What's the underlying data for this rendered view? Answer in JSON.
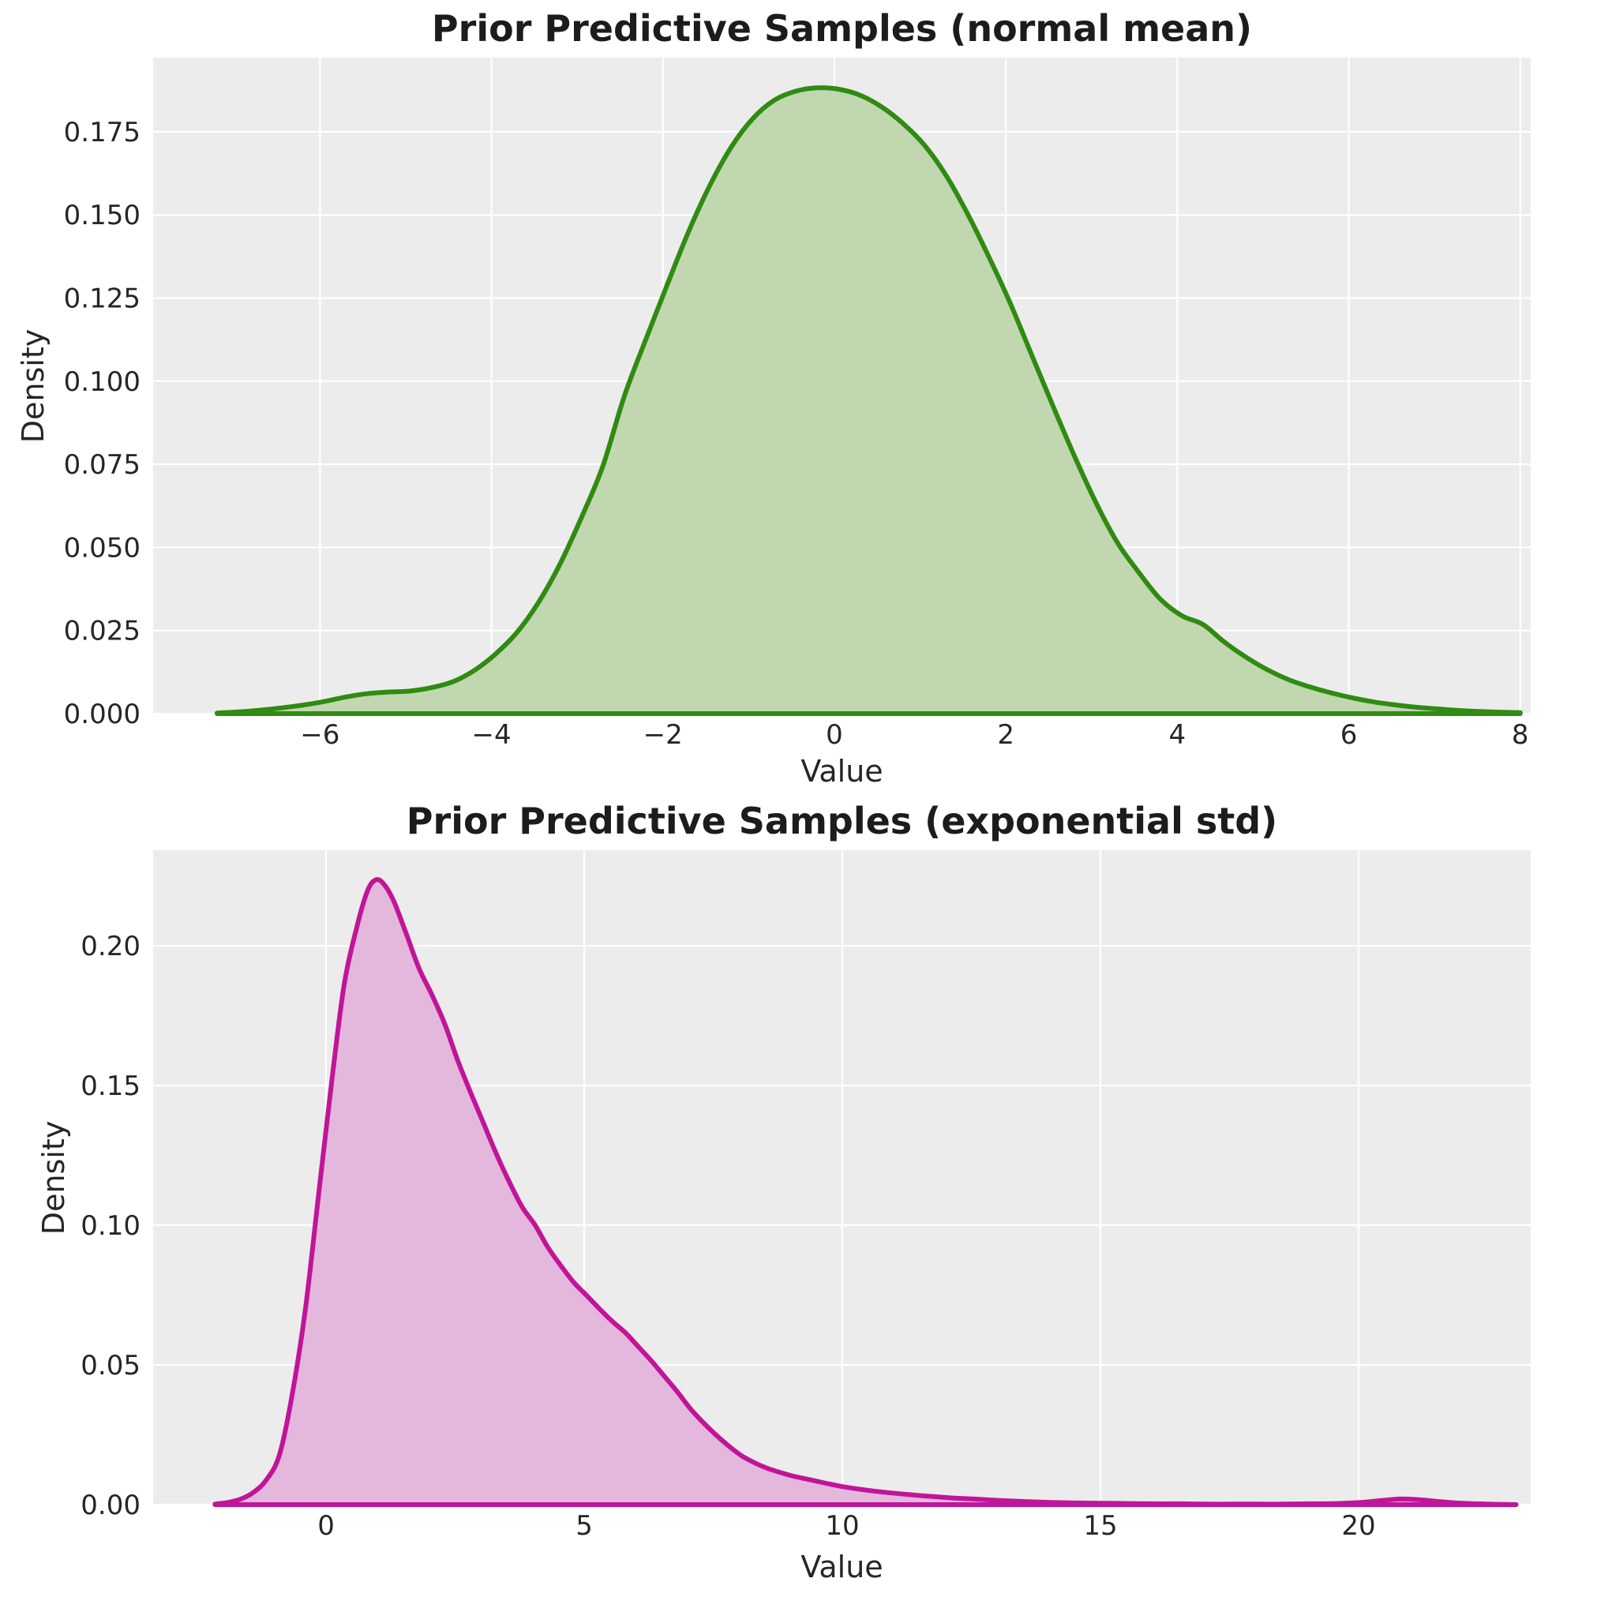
{
  "figure": {
    "background": "#ffffff",
    "plot_background": "#ececec",
    "grid_color": "#ffffff",
    "text_color": "#262626",
    "title_color": "#1c1c1c"
  },
  "chart_data": [
    {
      "type": "area",
      "kind": "kde-density",
      "title": "Prior Predictive Samples (normal mean)",
      "xlabel": "Value",
      "ylabel": "Density",
      "line_color": "#2f8b11",
      "fill_color": "#c1d7b0",
      "xlim": [
        -7.946,
        8.122
      ],
      "ylim": [
        0,
        0.1973
      ],
      "grid": true,
      "legend": "none",
      "xticks": [
        -6,
        -4,
        -2,
        0,
        2,
        4,
        6,
        8
      ],
      "xtick_labels": [
        "−6",
        "−4",
        "−2",
        "0",
        "2",
        "4",
        "6",
        "8"
      ],
      "yticks": [
        0,
        0.025,
        0.05,
        0.075,
        0.1,
        0.125,
        0.15,
        0.175
      ],
      "ytick_labels": [
        "0.000",
        "0.025",
        "0.050",
        "0.075",
        "0.100",
        "0.125",
        "0.150",
        "0.175"
      ],
      "points": [
        [
          -7.2,
          0.0002
        ],
        [
          -6.9,
          0.0006
        ],
        [
          -6.6,
          0.0013
        ],
        [
          -6.3,
          0.0022
        ],
        [
          -6.0,
          0.0034
        ],
        [
          -5.7,
          0.005
        ],
        [
          -5.45,
          0.006
        ],
        [
          -5.2,
          0.0065
        ],
        [
          -4.95,
          0.0068
        ],
        [
          -4.7,
          0.0078
        ],
        [
          -4.45,
          0.0096
        ],
        [
          -4.2,
          0.013
        ],
        [
          -3.95,
          0.018
        ],
        [
          -3.7,
          0.0245
        ],
        [
          -3.45,
          0.0335
        ],
        [
          -3.2,
          0.045
        ],
        [
          -2.95,
          0.059
        ],
        [
          -2.7,
          0.0745
        ],
        [
          -2.45,
          0.0955
        ],
        [
          -2.2,
          0.1125
        ],
        [
          -1.95,
          0.129
        ],
        [
          -1.7,
          0.145
        ],
        [
          -1.45,
          0.159
        ],
        [
          -1.2,
          0.1705
        ],
        [
          -0.95,
          0.179
        ],
        [
          -0.7,
          0.1845
        ],
        [
          -0.45,
          0.1872
        ],
        [
          -0.2,
          0.1882
        ],
        [
          0.05,
          0.1878
        ],
        [
          0.3,
          0.186
        ],
        [
          0.55,
          0.1825
        ],
        [
          0.8,
          0.1775
        ],
        [
          1.05,
          0.171
        ],
        [
          1.3,
          0.162
        ],
        [
          1.55,
          0.1505
        ],
        [
          1.8,
          0.1375
        ],
        [
          2.05,
          0.1235
        ],
        [
          2.3,
          0.108
        ],
        [
          2.55,
          0.0925
        ],
        [
          2.8,
          0.0775
        ],
        [
          3.05,
          0.0635
        ],
        [
          3.3,
          0.0515
        ],
        [
          3.55,
          0.0425
        ],
        [
          3.8,
          0.0345
        ],
        [
          4.05,
          0.0295
        ],
        [
          4.3,
          0.0268
        ],
        [
          4.55,
          0.0215
        ],
        [
          4.8,
          0.017
        ],
        [
          5.05,
          0.0132
        ],
        [
          5.3,
          0.0102
        ],
        [
          5.55,
          0.008
        ],
        [
          5.8,
          0.0062
        ],
        [
          6.05,
          0.0047
        ],
        [
          6.3,
          0.0035
        ],
        [
          6.55,
          0.0026
        ],
        [
          6.8,
          0.0019
        ],
        [
          7.1,
          0.0013
        ],
        [
          7.4,
          0.0008
        ],
        [
          7.7,
          0.0005
        ],
        [
          8.0,
          0.0003
        ]
      ]
    },
    {
      "type": "area",
      "kind": "kde-density",
      "title": "Prior Predictive Samples (exponential std)",
      "xlabel": "Value",
      "ylabel": "Density",
      "line_color": "#c01598",
      "fill_color": "#e4b7dc",
      "xlim": [
        -3.349,
        23.333
      ],
      "ylim": [
        0,
        0.2342
      ],
      "grid": true,
      "legend": "none",
      "xticks": [
        0,
        5,
        10,
        15,
        20
      ],
      "xtick_labels": [
        "0",
        "5",
        "10",
        "15",
        "20"
      ],
      "yticks": [
        0,
        0.05,
        0.1,
        0.15,
        0.2
      ],
      "ytick_labels": [
        "0.00",
        "0.05",
        "0.10",
        "0.15",
        "0.20"
      ],
      "points": [
        [
          -2.15,
          0.0002
        ],
        [
          -1.9,
          0.0008
        ],
        [
          -1.65,
          0.002
        ],
        [
          -1.4,
          0.0045
        ],
        [
          -1.15,
          0.009
        ],
        [
          -0.9,
          0.018
        ],
        [
          -0.65,
          0.04
        ],
        [
          -0.4,
          0.07
        ],
        [
          -0.15,
          0.11
        ],
        [
          0.1,
          0.15
        ],
        [
          0.35,
          0.186
        ],
        [
          0.6,
          0.207
        ],
        [
          0.8,
          0.2195
        ],
        [
          0.95,
          0.2235
        ],
        [
          1.1,
          0.2225
        ],
        [
          1.3,
          0.2165
        ],
        [
          1.55,
          0.2045
        ],
        [
          1.8,
          0.192
        ],
        [
          2.05,
          0.1825
        ],
        [
          2.3,
          0.172
        ],
        [
          2.55,
          0.159
        ],
        [
          2.8,
          0.1475
        ],
        [
          3.05,
          0.1365
        ],
        [
          3.3,
          0.1255
        ],
        [
          3.55,
          0.1155
        ],
        [
          3.8,
          0.1065
        ],
        [
          4.05,
          0.1
        ],
        [
          4.3,
          0.092
        ],
        [
          4.55,
          0.0855
        ],
        [
          4.8,
          0.0795
        ],
        [
          5.05,
          0.0748
        ],
        [
          5.3,
          0.07
        ],
        [
          5.55,
          0.0655
        ],
        [
          5.8,
          0.0615
        ],
        [
          6.05,
          0.0565
        ],
        [
          6.3,
          0.0515
        ],
        [
          6.55,
          0.046
        ],
        [
          6.8,
          0.0405
        ],
        [
          7.05,
          0.0345
        ],
        [
          7.3,
          0.0295
        ],
        [
          7.55,
          0.025
        ],
        [
          7.8,
          0.021
        ],
        [
          8.05,
          0.0175
        ],
        [
          8.3,
          0.015
        ],
        [
          8.55,
          0.013
        ],
        [
          8.8,
          0.0115
        ],
        [
          9.05,
          0.0102
        ],
        [
          9.3,
          0.0092
        ],
        [
          9.55,
          0.0082
        ],
        [
          9.8,
          0.0072
        ],
        [
          10.05,
          0.0063
        ],
        [
          10.55,
          0.005
        ],
        [
          11.05,
          0.004
        ],
        [
          11.55,
          0.0032
        ],
        [
          12.05,
          0.0025
        ],
        [
          12.55,
          0.002
        ],
        [
          13.05,
          0.0015
        ],
        [
          13.55,
          0.0011
        ],
        [
          14.05,
          0.0008
        ],
        [
          14.55,
          0.0006
        ],
        [
          15.05,
          0.0005
        ],
        [
          15.55,
          0.0004
        ],
        [
          16.05,
          0.0003
        ],
        [
          16.55,
          0.0003
        ],
        [
          17.05,
          0.0002
        ],
        [
          17.55,
          0.0002
        ],
        [
          18.05,
          0.0002
        ],
        [
          18.55,
          0.0002
        ],
        [
          19.05,
          0.0003
        ],
        [
          19.55,
          0.0004
        ],
        [
          20.05,
          0.0008
        ],
        [
          20.45,
          0.0015
        ],
        [
          20.8,
          0.002
        ],
        [
          21.15,
          0.0018
        ],
        [
          21.5,
          0.0012
        ],
        [
          21.9,
          0.0006
        ],
        [
          22.3,
          0.0003
        ],
        [
          22.7,
          0.0001
        ],
        [
          23.05,
          0.0
        ]
      ]
    }
  ]
}
